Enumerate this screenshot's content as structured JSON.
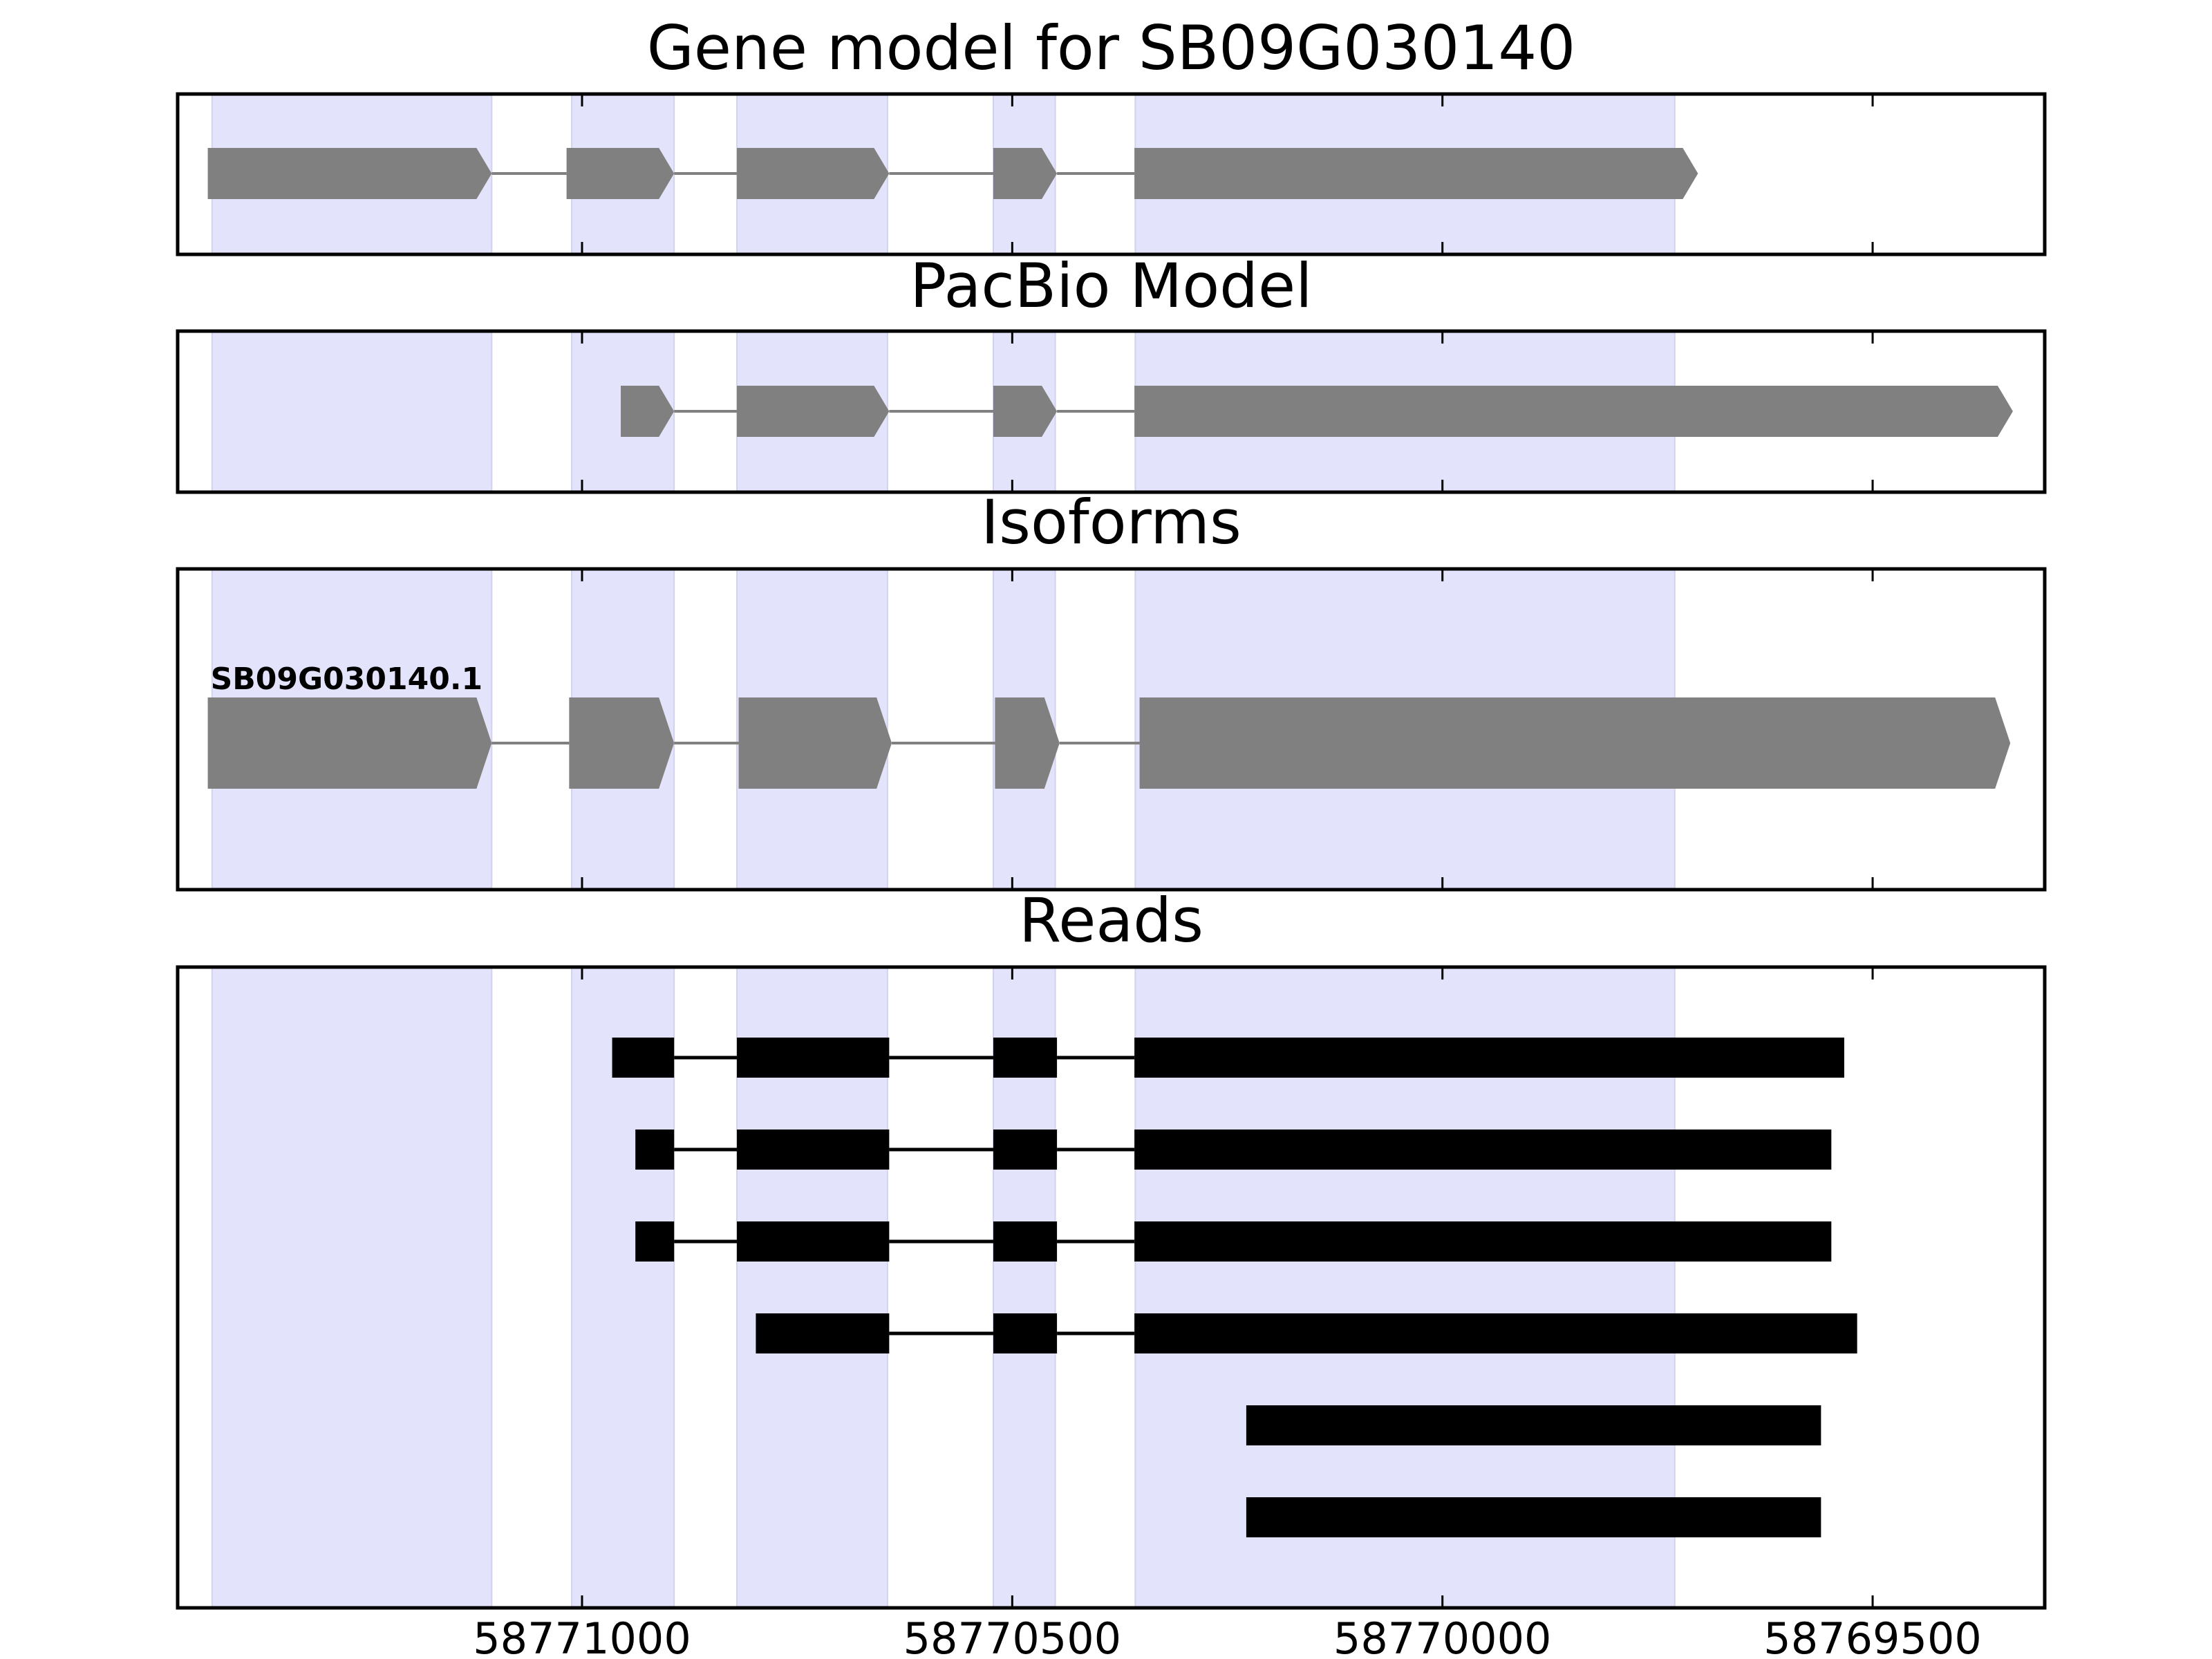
{
  "chart_data": {
    "type": "gene-track",
    "x_axis": {
      "direction": "reversed",
      "xlim": [
        58771470,
        58769300
      ],
      "ticks": [
        58771000,
        58770500,
        58770000,
        58769500
      ],
      "tick_labels": [
        "58771000",
        "58770500",
        "58770000",
        "58769500"
      ]
    },
    "highlight_color": "#e3e3fc",
    "exon_regions": [
      [
        58771430,
        58771105
      ],
      [
        58771012,
        58770893
      ],
      [
        58770820,
        58770645
      ],
      [
        58770522,
        58770450
      ],
      [
        58770357,
        58769730
      ]
    ],
    "panels": [
      {
        "title": "Gene model for SB09G030140",
        "style": "arrow",
        "color": "#808080",
        "tracks": [
          {
            "label": "",
            "exons": [
              [
                58771435,
                58771105
              ],
              [
                58771018,
                58770893
              ],
              [
                58770820,
                58770643
              ],
              [
                58770522,
                58770448
              ],
              [
                58770358,
                58769703
              ]
            ]
          }
        ]
      },
      {
        "title": "PacBio Model",
        "style": "arrow",
        "color": "#808080",
        "tracks": [
          {
            "label": "",
            "exons": [
              [
                58770955,
                58770893
              ],
              [
                58770820,
                58770643
              ],
              [
                58770522,
                58770448
              ],
              [
                58770358,
                58769337
              ]
            ]
          }
        ]
      },
      {
        "title": "Isoforms",
        "style": "arrow",
        "color": "#808080",
        "tracks": [
          {
            "label": "SB09G030140.1",
            "exons": [
              [
                58771435,
                58771105
              ],
              [
                58771015,
                58770893
              ],
              [
                58770818,
                58770640
              ],
              [
                58770520,
                58770445
              ],
              [
                58770352,
                58769340
              ]
            ]
          }
        ]
      },
      {
        "title": "Reads",
        "style": "bar",
        "color": "#000000",
        "tracks": [
          {
            "label": "",
            "exons": [
              [
                58770965,
                58770893
              ],
              [
                58770820,
                58770643
              ],
              [
                58770522,
                58770448
              ],
              [
                58770358,
                58769533
              ]
            ]
          },
          {
            "label": "",
            "exons": [
              [
                58770938,
                58770893
              ],
              [
                58770820,
                58770643
              ],
              [
                58770522,
                58770448
              ],
              [
                58770358,
                58769548
              ]
            ]
          },
          {
            "label": "",
            "exons": [
              [
                58770938,
                58770893
              ],
              [
                58770820,
                58770643
              ],
              [
                58770522,
                58770448
              ],
              [
                58770358,
                58769548
              ]
            ]
          },
          {
            "label": "",
            "exons": [
              [
                58770798,
                58770643
              ],
              [
                58770522,
                58770448
              ],
              [
                58770358,
                58769518
              ]
            ]
          },
          {
            "label": "",
            "exons": [
              [
                58770228,
                58769560
              ]
            ]
          },
          {
            "label": "",
            "exons": [
              [
                58770228,
                58769560
              ]
            ]
          }
        ]
      }
    ]
  }
}
